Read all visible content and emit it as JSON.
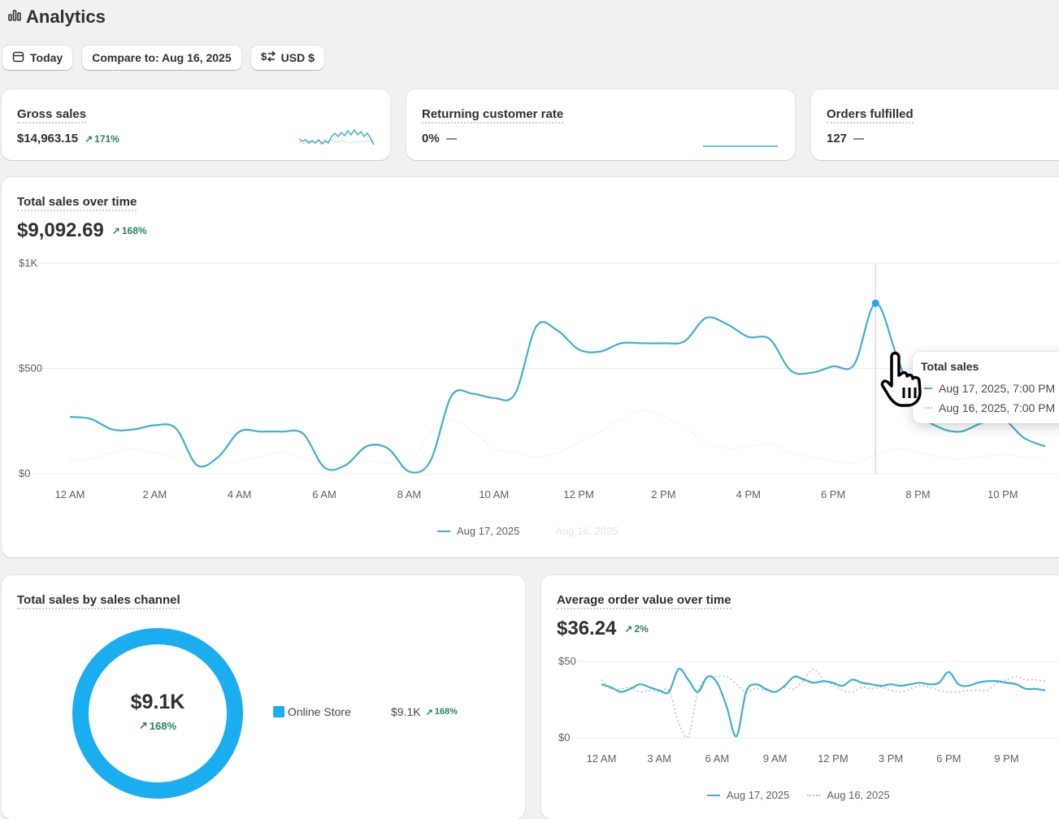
{
  "header": {
    "title": "Analytics",
    "icon": "bar-chart-icon"
  },
  "toolbar": {
    "date_label": "Today",
    "compare_label": "Compare to: Aug 16, 2025",
    "currency_label": "USD $"
  },
  "kpis": [
    {
      "title": "Gross sales",
      "value": "$14,963.15",
      "delta": "171%"
    },
    {
      "title": "Returning customer rate",
      "value": "0%"
    },
    {
      "title": "Orders fulfilled",
      "value": "127"
    }
  ],
  "colors": {
    "accent": "#3fb0d3",
    "positive": "#29845a",
    "donut": "#1aaef0",
    "comparison": "#bdbdbd"
  },
  "total_sales": {
    "title": "Total sales over time",
    "value": "$9,092.69",
    "delta": "168%",
    "legend_current": "Aug 17, 2025",
    "legend_previous": "Aug 16, 2025",
    "tooltip": {
      "title": "Total sales",
      "row_current": "Aug 17, 2025, 7:00 PM",
      "row_previous": "Aug 16, 2025, 7:00 PM"
    }
  },
  "sales_by_channel": {
    "title": "Total sales by sales channel",
    "center_value": "$9.1K",
    "center_delta": "168%",
    "channel_name": "Online Store",
    "channel_value": "$9.1K",
    "channel_delta": "168%"
  },
  "aov": {
    "title": "Average order value over time",
    "value": "$36.24",
    "delta": "2%",
    "legend_current": "Aug 17, 2025",
    "legend_previous": "Aug 16, 2025"
  },
  "chart_data": [
    {
      "type": "line",
      "title": "Total sales over time",
      "y_tick_labels": [
        "$0",
        "$500",
        "$1K"
      ],
      "ylim": [
        0,
        1000
      ],
      "x_tick_labels": [
        "12 AM",
        "2 AM",
        "4 AM",
        "6 AM",
        "8 AM",
        "10 AM",
        "12 PM",
        "2 PM",
        "4 PM",
        "6 PM",
        "8 PM",
        "10 PM"
      ],
      "x": [
        0,
        0.5,
        1,
        1.5,
        2,
        2.5,
        3,
        3.5,
        4,
        4.5,
        5,
        5.5,
        6,
        6.5,
        7,
        7.5,
        8,
        8.5,
        9,
        9.5,
        10,
        10.5,
        11,
        11.5,
        12,
        12.5,
        13,
        13.5,
        14,
        14.5,
        15,
        15.5,
        16,
        16.5,
        17,
        17.5,
        18,
        18.5,
        19,
        19.5,
        20,
        20.5,
        21,
        21.5,
        22,
        22.5,
        23
      ],
      "series": [
        {
          "name": "Aug 17, 2025",
          "values": [
            270,
            260,
            210,
            210,
            230,
            215,
            40,
            80,
            200,
            200,
            200,
            190,
            30,
            40,
            130,
            120,
            10,
            60,
            370,
            380,
            360,
            380,
            700,
            680,
            590,
            580,
            620,
            620,
            620,
            630,
            740,
            710,
            650,
            640,
            490,
            480,
            510,
            520,
            810,
            560,
            300,
            220,
            200,
            240,
            260,
            170,
            130
          ]
        },
        {
          "name": "Aug 16, 2025",
          "values": [
            60,
            70,
            100,
            120,
            100,
            80,
            60,
            50,
            60,
            80,
            100,
            70,
            40,
            50,
            60,
            50,
            40,
            200,
            260,
            200,
            120,
            100,
            80,
            100,
            150,
            200,
            260,
            300,
            270,
            220,
            150,
            120,
            130,
            140,
            100,
            80,
            60,
            50,
            90,
            120,
            100,
            80,
            70,
            80,
            90,
            80,
            70
          ]
        }
      ],
      "highlight_x": 19,
      "grid": true,
      "legend": "bottom"
    },
    {
      "type": "pie",
      "title": "Total sales by sales channel",
      "categories": [
        "Online Store"
      ],
      "values": [
        9.1
      ],
      "center_label": "$9.1K"
    },
    {
      "type": "line",
      "title": "Average order value over time",
      "y_tick_labels": [
        "$0",
        "$50"
      ],
      "ylim": [
        0,
        50
      ],
      "x_tick_labels": [
        "12 AM",
        "3 AM",
        "6 AM",
        "9 AM",
        "12 PM",
        "3 PM",
        "6 PM",
        "9 PM"
      ],
      "x": [
        0,
        0.5,
        1,
        1.5,
        2,
        2.5,
        3,
        3.5,
        4,
        4.5,
        5,
        5.5,
        6,
        6.5,
        7,
        7.5,
        8,
        8.5,
        9,
        9.5,
        10,
        10.5,
        11,
        11.5,
        12,
        12.5,
        13,
        13.5,
        14,
        14.5,
        15,
        15.5,
        16,
        16.5,
        17,
        17.5,
        18,
        18.5,
        19,
        19.5,
        20,
        20.5,
        21,
        21.5,
        22,
        22.5,
        23
      ],
      "series": [
        {
          "name": "Aug 17, 2025",
          "values": [
            35,
            33,
            30,
            32,
            35,
            33,
            31,
            30,
            45,
            38,
            30,
            40,
            36,
            20,
            1,
            30,
            35,
            32,
            30,
            34,
            40,
            38,
            36,
            37,
            36,
            34,
            38,
            36,
            35,
            34,
            35,
            34,
            35,
            36,
            35,
            36,
            43,
            35,
            34,
            36,
            37,
            37,
            36,
            35,
            32,
            32,
            31
          ]
        },
        {
          "name": "Aug 16, 2025",
          "values": [
            38,
            32,
            32,
            33,
            30,
            31,
            30,
            31,
            10,
            1,
            30,
            40,
            40,
            40,
            35,
            30,
            32,
            31,
            30,
            33,
            32,
            38,
            45,
            38,
            35,
            31,
            30,
            33,
            32,
            33,
            31,
            30,
            32,
            34,
            33,
            31,
            30,
            30,
            31,
            31,
            31,
            36,
            38,
            40,
            38,
            38,
            37
          ]
        }
      ],
      "grid": true,
      "legend": "bottom"
    }
  ]
}
